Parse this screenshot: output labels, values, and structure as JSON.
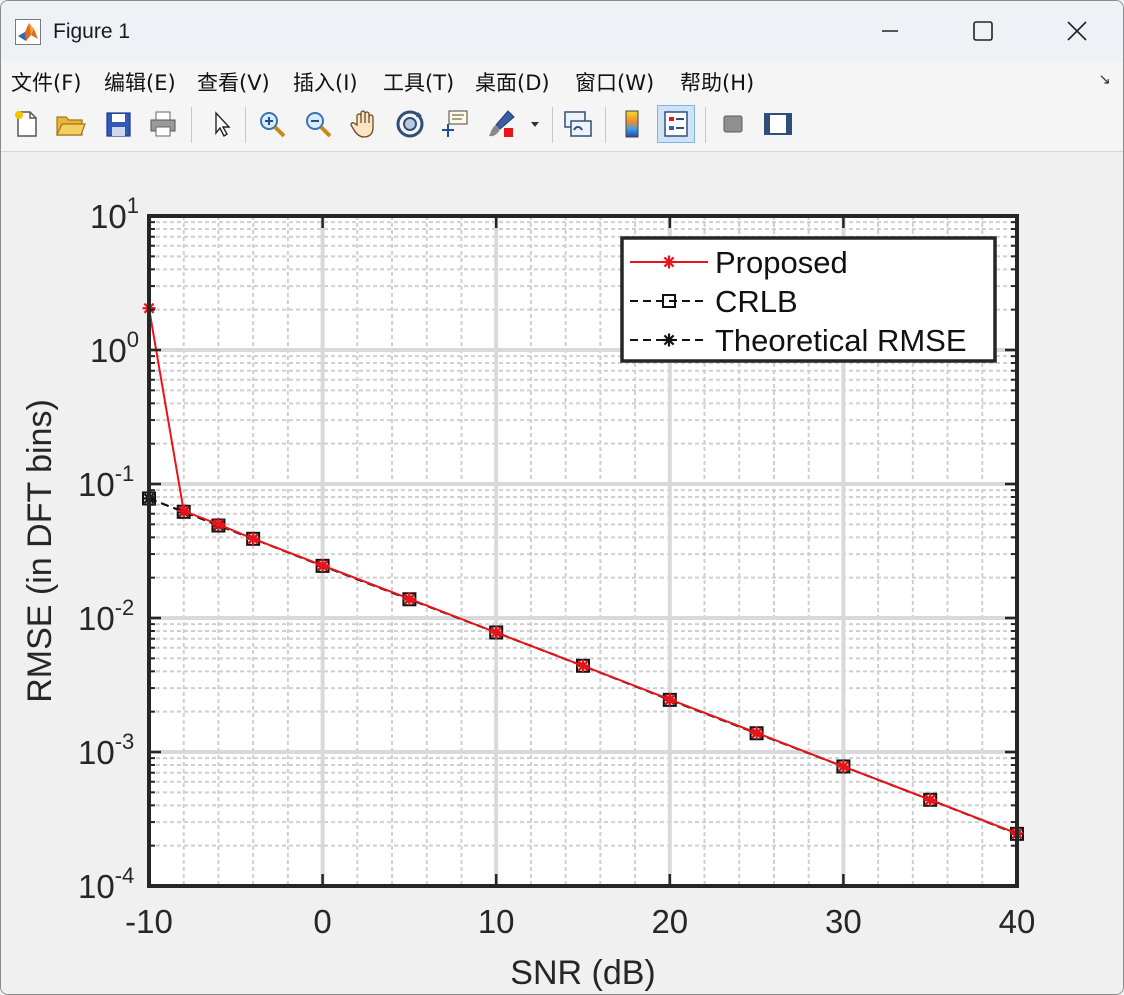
{
  "window": {
    "title": "Figure 1",
    "minimize_icon": "minimize-icon",
    "maximize_icon": "maximize-icon",
    "close_icon": "close-icon"
  },
  "menu": {
    "items": [
      "文件(F)",
      "编辑(E)",
      "查看(V)",
      "插入(I)",
      "工具(T)",
      "桌面(D)",
      "窗口(W)",
      "帮助(H)"
    ],
    "corner_icon": "dock-arrow-icon"
  },
  "toolbar": {
    "icons": [
      "new-figure-icon",
      "open-file-icon",
      "save-icon",
      "print-icon",
      "pointer-icon",
      "zoom-in-icon",
      "zoom-out-icon",
      "pan-icon",
      "rotate-3d-icon",
      "data-cursor-icon",
      "brush-icon",
      "dropdown-arrow-icon",
      "link-plot-icon",
      "colorbar-icon",
      "legend-icon",
      "hide-plot-tools-icon",
      "show-plot-tools-icon"
    ]
  },
  "chart_data": {
    "type": "line",
    "title": "",
    "xlabel": "SNR (dB)",
    "ylabel": "RMSE (in DFT bins)",
    "xlim": [
      -10,
      40
    ],
    "ylim": [
      0.0001,
      10
    ],
    "yscale": "log",
    "grid": true,
    "minor_grid": true,
    "legend_position": "top-right",
    "x_ticks": [
      "-10",
      "0",
      "10",
      "20",
      "30",
      "40"
    ],
    "y_ticks": [
      {
        "base": "10",
        "exp": "1"
      },
      {
        "base": "10",
        "exp": "0"
      },
      {
        "base": "10",
        "exp": "-1"
      },
      {
        "base": "10",
        "exp": "-2"
      },
      {
        "base": "10",
        "exp": "-3"
      },
      {
        "base": "10",
        "exp": "-4"
      }
    ],
    "x": [
      -10,
      -8,
      -6,
      -4,
      0,
      5,
      10,
      15,
      20,
      25,
      30,
      35,
      40
    ],
    "series": [
      {
        "name": "Proposed",
        "color": "#e8141a",
        "line": "solid",
        "marker": "asterisk",
        "values": [
          2.05,
          0.063,
          0.05,
          0.039,
          0.0247,
          0.0139,
          0.0078,
          0.0044,
          0.00247,
          0.00139,
          0.00078,
          0.00044,
          0.000247
        ]
      },
      {
        "name": "CRLB",
        "color": "#111111",
        "line": "dashed",
        "marker": "square",
        "values": [
          0.078,
          0.062,
          0.049,
          0.039,
          0.0245,
          0.0138,
          0.0078,
          0.0044,
          0.00245,
          0.00138,
          0.00078,
          0.00044,
          0.000245
        ]
      },
      {
        "name": "Theoretical RMSE",
        "color": "#111111",
        "line": "dashed",
        "marker": "asterisk",
        "values": [
          0.078,
          0.062,
          0.049,
          0.039,
          0.0245,
          0.0138,
          0.0078,
          0.0044,
          0.00245,
          0.00138,
          0.00078,
          0.00044,
          0.000245
        ]
      }
    ]
  }
}
